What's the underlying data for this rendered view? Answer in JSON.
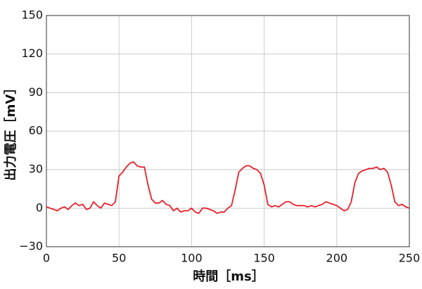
{
  "chart_data": {
    "type": "line",
    "x_label": "時間［ms］",
    "y_label": "出力電圧［mV］",
    "x": [
      0,
      2.5,
      5,
      7.5,
      10,
      12.5,
      15,
      17.5,
      20,
      22.5,
      25,
      27.5,
      30,
      32.5,
      35,
      37.5,
      40,
      42.5,
      45,
      47.5,
      50,
      52.5,
      55,
      57.5,
      60,
      62.5,
      65,
      67.5,
      70,
      72.5,
      75,
      77.5,
      80,
      82.5,
      85,
      87.5,
      90,
      92.5,
      95,
      97.5,
      100,
      102.5,
      105,
      107.5,
      110,
      112.5,
      115,
      117.5,
      120,
      122.5,
      125,
      127.5,
      130,
      132.5,
      135,
      137.5,
      140,
      142.5,
      145,
      147.5,
      150,
      152.5,
      155,
      157.5,
      160,
      162.5,
      165,
      167.5,
      170,
      172.5,
      175,
      177.5,
      180,
      182.5,
      185,
      187.5,
      190,
      192.5,
      195,
      197.5,
      200,
      202.5,
      205,
      207.5,
      210,
      212.5,
      215,
      217.5,
      220,
      222.5,
      225,
      227.5,
      230,
      232.5,
      235,
      237.5,
      240,
      242.5,
      245,
      247.5,
      250
    ],
    "series": [
      {
        "color": "#e8202a",
        "values": [
          1,
          0,
          -1,
          -2,
          0,
          1,
          -1,
          2,
          4,
          2,
          3,
          -1,
          0,
          5,
          2,
          0,
          4,
          3,
          2,
          5,
          25,
          28,
          32,
          35,
          36,
          33,
          32,
          32,
          18,
          7,
          4,
          4,
          6,
          3,
          2,
          -2,
          0,
          -3,
          -2,
          -2,
          0,
          -3,
          -4,
          0,
          0,
          -1,
          -2,
          -4,
          -3,
          -3,
          0,
          2,
          14,
          28,
          31,
          33,
          33,
          31,
          30,
          27,
          18,
          3,
          1,
          2,
          1,
          3,
          5,
          5,
          3,
          2,
          2,
          2,
          1,
          2,
          1,
          2,
          3,
          5,
          4,
          3,
          2,
          0,
          -2,
          -1,
          5,
          20,
          27,
          29,
          30,
          31,
          31,
          32,
          30,
          31,
          28,
          18,
          5,
          2,
          3,
          1,
          0
        ]
      }
    ],
    "xlim": [
      0,
      250
    ],
    "xticks": [
      0,
      50,
      100,
      150,
      200,
      250
    ],
    "ylim": [
      -30,
      150
    ],
    "yticks": [
      {
        "value": -30,
        "label": "−30"
      },
      0,
      30,
      60,
      90,
      120,
      150
    ],
    "grid": true
  }
}
